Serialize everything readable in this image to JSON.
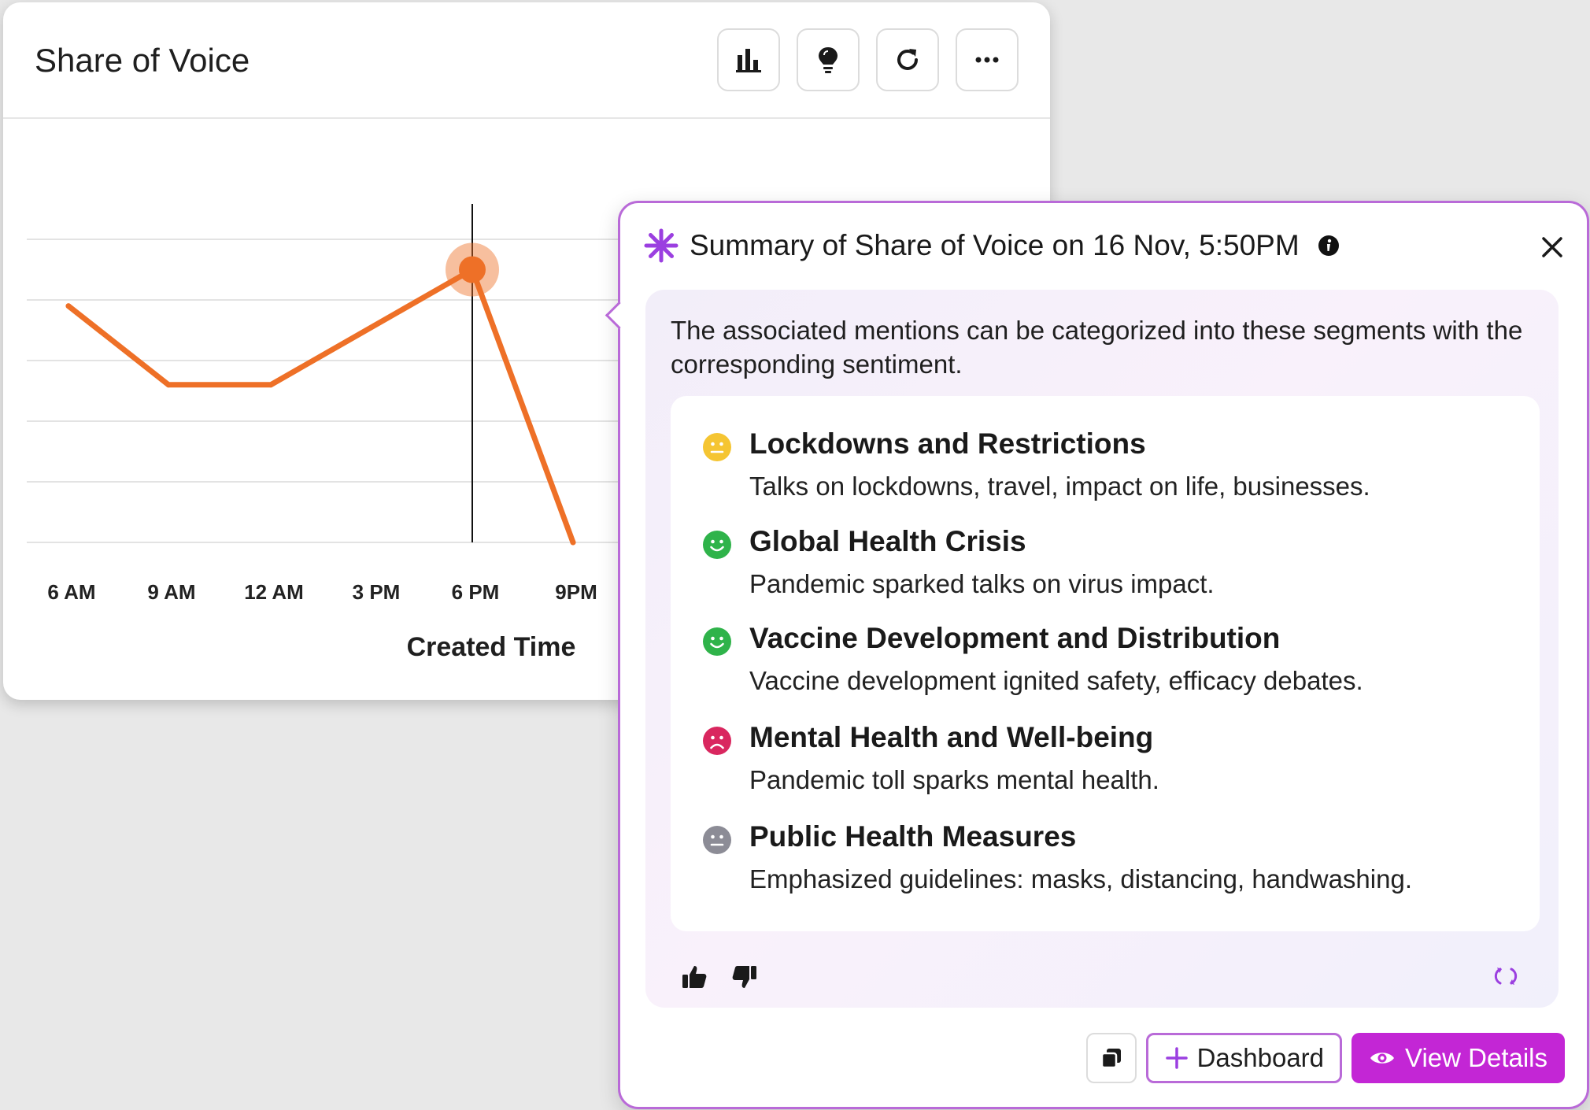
{
  "chart_card": {
    "title": "Share of Voice",
    "toolbar": [
      {
        "name": "chart-type-button",
        "icon": "bar-chart-icon"
      },
      {
        "name": "insights-button",
        "icon": "lightbulb-icon"
      },
      {
        "name": "refresh-button",
        "icon": "refresh-icon"
      },
      {
        "name": "more-options-button",
        "icon": "more-horizontal-icon"
      }
    ]
  },
  "chart_data": {
    "type": "line",
    "xlabel": "Created Time",
    "ylabel": "",
    "categories": [
      "6 AM",
      "9 AM",
      "12 AM",
      "3 PM",
      "6 PM",
      "9PM"
    ],
    "series": [
      {
        "color": "#ee7027",
        "points": [
          {
            "x": "6 AM",
            "y": 3.9
          },
          {
            "x": "9 AM",
            "y": 2.6
          },
          {
            "x": "12 AM",
            "y": 2.6
          },
          {
            "x": "6 PM",
            "y": 4.5
          },
          {
            "x": "9PM",
            "y": 0
          }
        ]
      }
    ],
    "highlighted_point": "6 PM",
    "ylim": [
      0,
      5
    ],
    "grid": true,
    "legend": "none"
  },
  "summary": {
    "title": "Summary of Share of Voice on 16 Nov, 5:50PM",
    "intro": "The associated mentions can be categorized into these segments with the corresponding sentiment.",
    "segments": [
      {
        "title": "Lockdowns and Restrictions",
        "desc": "Talks on lockdowns, travel, impact on life, businesses.",
        "sentiment": "neutral",
        "color": "#f5c532"
      },
      {
        "title": "Global Health Crisis",
        "desc": "Pandemic sparked talks on virus impact.",
        "sentiment": "positive",
        "color": "#2fb34a"
      },
      {
        "title": "Vaccine Development and Distribution",
        "desc": "Vaccine development ignited safety, efficacy debates.",
        "sentiment": "positive",
        "color": "#2fb34a"
      },
      {
        "title": "Mental Health and Well-being",
        "desc": "Pandemic toll sparks mental health.",
        "sentiment": "negative",
        "color": "#d9275f"
      },
      {
        "title": "Public Health Measures",
        "desc": "Emphasized guidelines: masks, distancing, handwashing.",
        "sentiment": "neutral",
        "color": "#8c8c96"
      }
    ],
    "footer": {
      "dashboard_label": "Dashboard",
      "view_details_label": "View Details"
    },
    "accent_color": "#c326d5"
  }
}
